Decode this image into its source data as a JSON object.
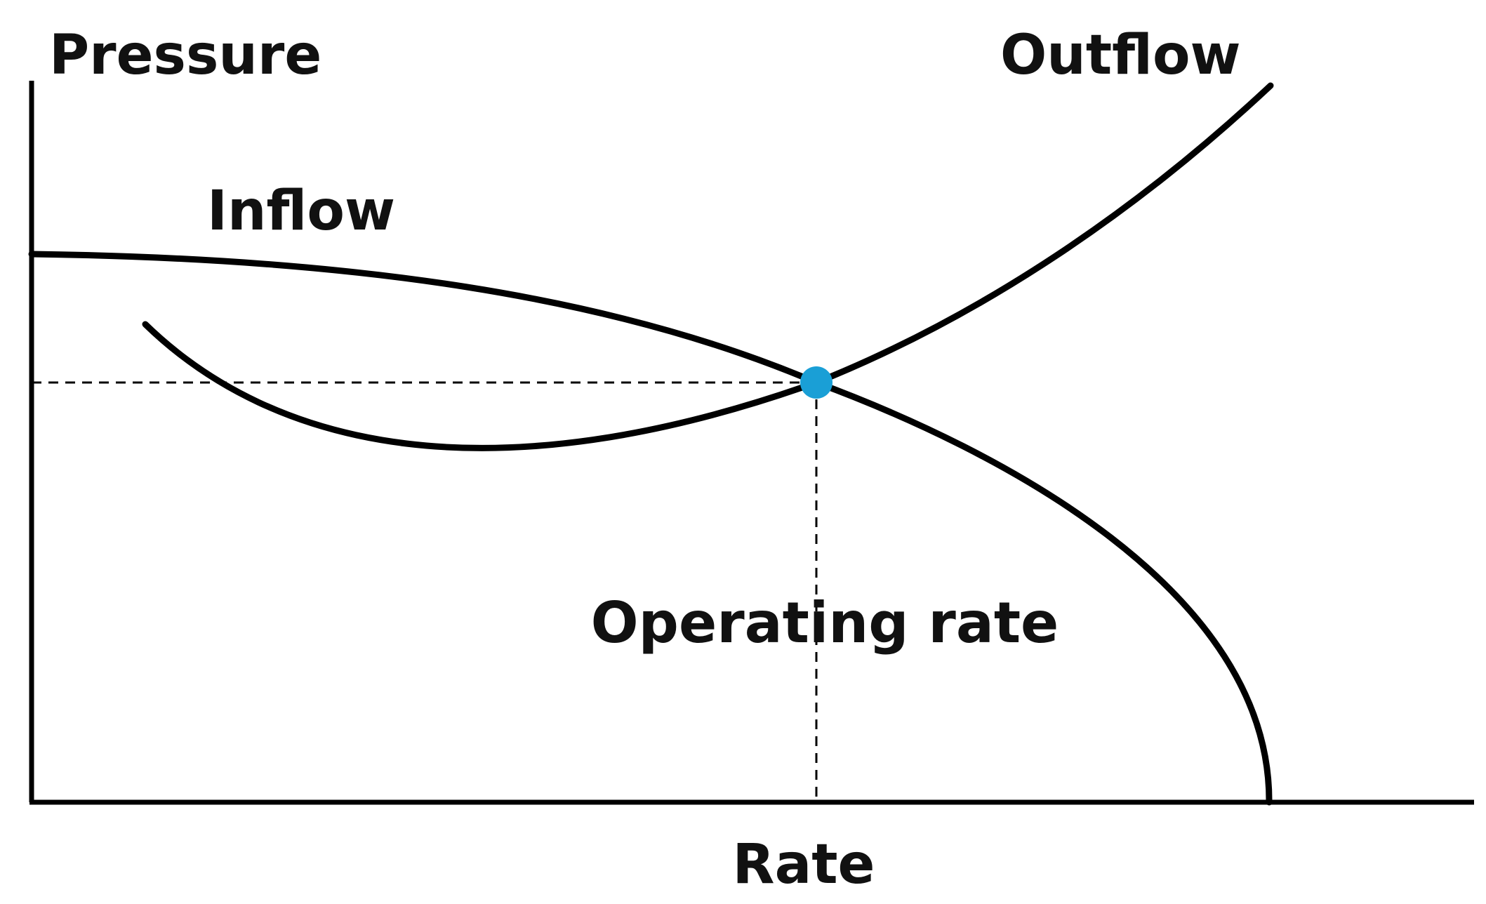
{
  "chart_data": {
    "type": "line",
    "title": "",
    "xlabel": "Rate",
    "ylabel": "Pressure",
    "grid": false,
    "series": [
      {
        "name": "Inflow",
        "curve_shape": "concave-down, decreasing",
        "color": "#000000"
      },
      {
        "name": "Outflow",
        "curve_shape": "U-shaped, increasing after minimum",
        "color": "#000000"
      }
    ],
    "annotations": [
      {
        "text": "Operating rate",
        "color": "#1a9fd6",
        "marks": "intersection of Inflow and Outflow"
      }
    ],
    "colors": {
      "curves": "#000000",
      "operating_point": "#1a9fd6",
      "operating_label": "#1a9fd6"
    }
  }
}
